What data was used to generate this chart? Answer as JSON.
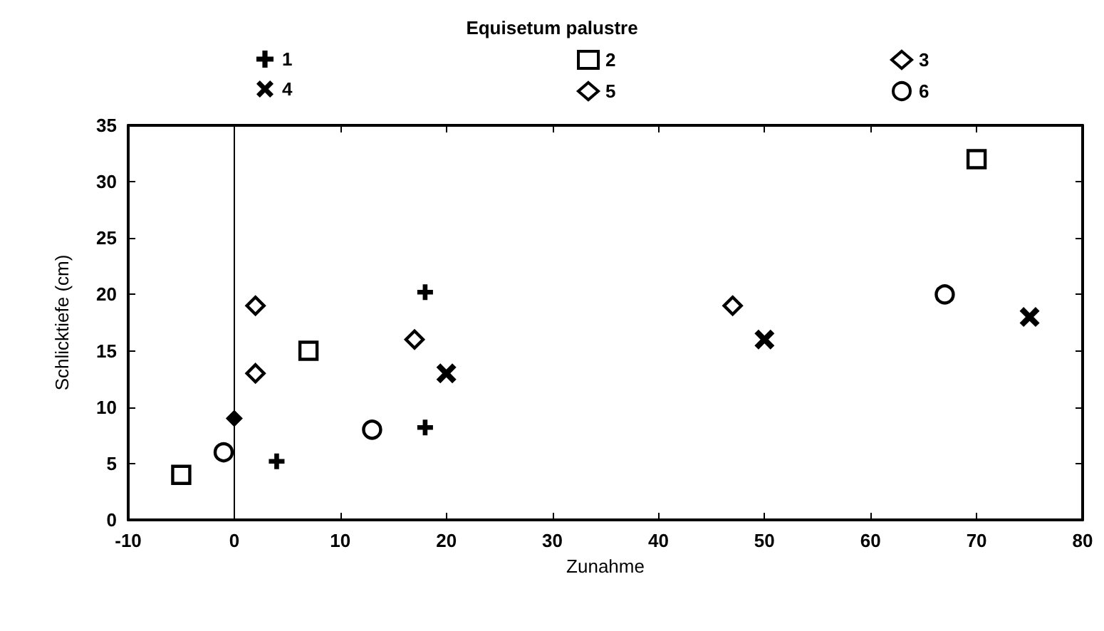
{
  "chart_data": {
    "type": "scatter",
    "title": "Equisetum palustre",
    "xlabel": "Zunahme",
    "ylabel": "Schlicktiefe (cm)",
    "xlim": [
      -10,
      80
    ],
    "xticks": [
      -10,
      0,
      10,
      20,
      30,
      40,
      50,
      60,
      70,
      80
    ],
    "ylim": [
      0,
      35
    ],
    "yticks": [
      0,
      5,
      10,
      15,
      20,
      25,
      30,
      35
    ],
    "grid": false,
    "legend": "top",
    "ref_lines": [
      {
        "axis": "x",
        "value": 0,
        "color": "#000000"
      }
    ],
    "series": [
      {
        "name": "1",
        "color": "#000000",
        "marker": "plus",
        "x": [
          4,
          18,
          18
        ],
        "values": [
          5.2,
          20.2,
          8.2
        ]
      },
      {
        "name": "2",
        "color": "#000000",
        "marker": "square",
        "x": [
          -5,
          7,
          70
        ],
        "values": [
          4,
          15,
          32
        ]
      },
      {
        "name": "3",
        "color": "#000000",
        "marker": "diamond",
        "x": [
          2,
          2
        ],
        "values": [
          19,
          13
        ]
      },
      {
        "name": "4",
        "color": "#000000",
        "marker": "cross",
        "x": [
          20,
          50,
          75
        ],
        "values": [
          13,
          16,
          18
        ]
      },
      {
        "name": "5",
        "color": "#000000",
        "marker": "diamond",
        "x": [
          17,
          47
        ],
        "values": [
          16,
          19
        ]
      },
      {
        "name": "6",
        "color": "#000000",
        "marker": "circle",
        "x": [
          -1,
          13,
          67
        ],
        "values": [
          6,
          8,
          20
        ]
      },
      {
        "color": "#000000",
        "marker": "diamond",
        "x": [
          0
        ],
        "values": [
          9
        ]
      }
    ]
  }
}
